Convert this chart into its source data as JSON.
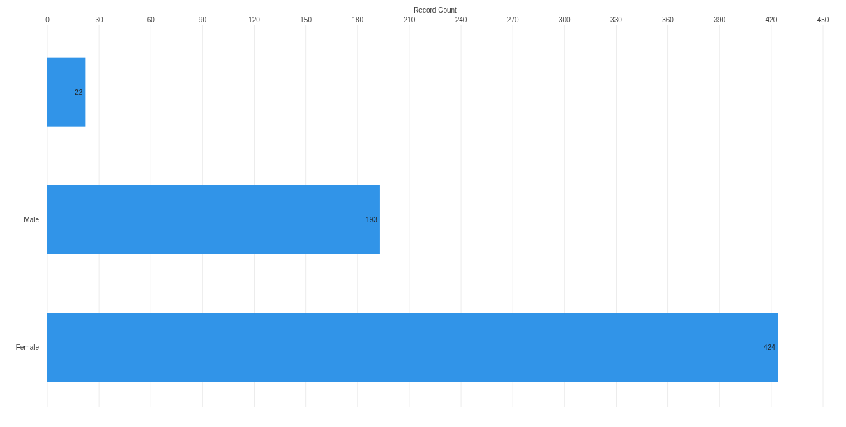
{
  "chart_data": {
    "type": "bar",
    "orientation": "horizontal",
    "xlabel": "Record Count",
    "categories": [
      "-",
      "Male",
      "Female"
    ],
    "values": [
      22,
      193,
      424
    ],
    "color": "#3194e8",
    "xlim": [
      0,
      450
    ],
    "xticks": [
      0,
      30,
      60,
      90,
      120,
      150,
      180,
      210,
      240,
      270,
      300,
      330,
      360,
      390,
      420,
      450
    ],
    "grid": "x",
    "data_labels": true
  }
}
